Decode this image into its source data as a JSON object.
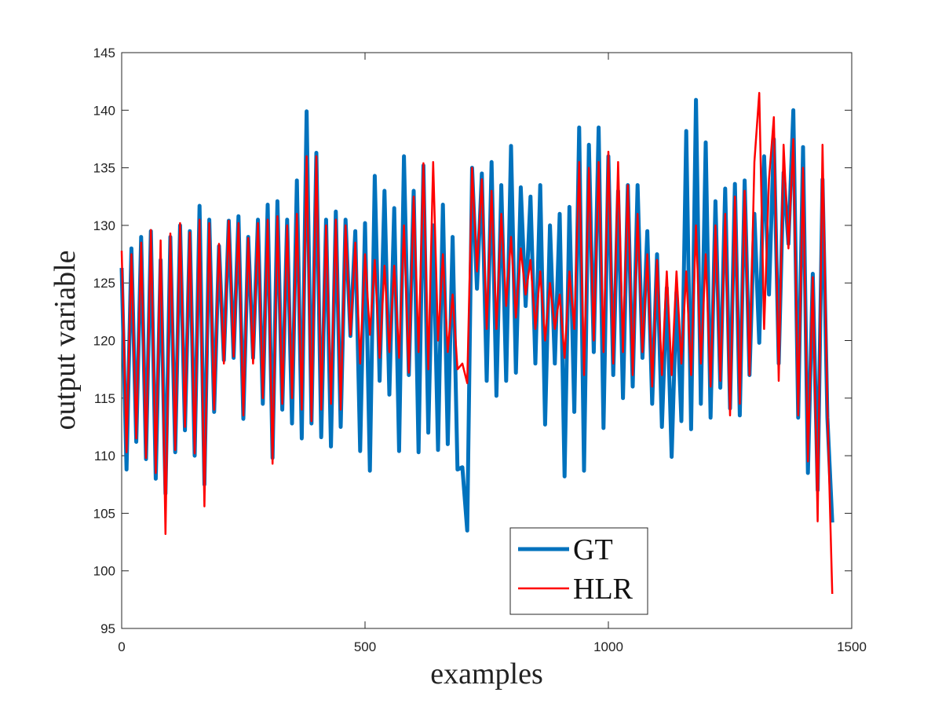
{
  "chart_data": {
    "type": "line",
    "xlabel": "examples",
    "ylabel": "output variable",
    "xlim": [
      0,
      1500
    ],
    "xticks": [
      0,
      500,
      1000,
      1500
    ],
    "ylim": [
      95,
      145
    ],
    "yticks": [
      95,
      100,
      105,
      110,
      115,
      120,
      125,
      130,
      135,
      140,
      145
    ],
    "legend": "lower center",
    "x": [
      0,
      10,
      20,
      30,
      40,
      50,
      60,
      70,
      80,
      90,
      100,
      110,
      120,
      130,
      140,
      150,
      160,
      170,
      180,
      190,
      200,
      210,
      220,
      230,
      240,
      250,
      260,
      270,
      280,
      290,
      300,
      310,
      320,
      330,
      340,
      350,
      360,
      370,
      380,
      390,
      400,
      410,
      420,
      430,
      440,
      450,
      460,
      470,
      480,
      490,
      500,
      510,
      520,
      530,
      540,
      550,
      560,
      570,
      580,
      590,
      600,
      610,
      620,
      630,
      640,
      650,
      660,
      670,
      680,
      690,
      700,
      710,
      720,
      730,
      740,
      750,
      760,
      770,
      780,
      790,
      800,
      810,
      820,
      830,
      840,
      850,
      860,
      870,
      880,
      890,
      900,
      910,
      920,
      930,
      940,
      950,
      960,
      970,
      980,
      990,
      1000,
      1010,
      1020,
      1030,
      1040,
      1050,
      1060,
      1070,
      1080,
      1090,
      1100,
      1110,
      1120,
      1130,
      1140,
      1150,
      1160,
      1170,
      1180,
      1190,
      1200,
      1210,
      1220,
      1230,
      1240,
      1250,
      1260,
      1270,
      1280,
      1290,
      1300,
      1310,
      1320,
      1330,
      1340,
      1350,
      1360,
      1370,
      1380,
      1390,
      1400,
      1410,
      1420,
      1430,
      1440,
      1450,
      1460
    ],
    "series": [
      {
        "name": "GT",
        "color": "#0072bd",
        "values": [
          126.3,
          108.8,
          128,
          111.2,
          129,
          109.7,
          129.5,
          108,
          127,
          106.7,
          129,
          110.3,
          130,
          112.2,
          129.5,
          110,
          131.7,
          107.5,
          130.5,
          113.8,
          128.2,
          118.3,
          130.4,
          118.5,
          130.8,
          113.2,
          129,
          118.5,
          130.5,
          114.5,
          131.8,
          109.8,
          132.1,
          114,
          130.5,
          112.8,
          133.9,
          111.5,
          139.9,
          112.8,
          136.3,
          111.6,
          130.5,
          110.8,
          131.2,
          112.5,
          130.5,
          120.4,
          129.5,
          110.4,
          130.2,
          108.7,
          134.3,
          116.5,
          133,
          115.3,
          131.5,
          110.4,
          136,
          117,
          133,
          110.3,
          135.2,
          112,
          130,
          110.5,
          131.8,
          111,
          129,
          108.8,
          109,
          103.5,
          135,
          124.5,
          134.5,
          116.5,
          135.5,
          115.2,
          133.5,
          116.5,
          136.9,
          117.2,
          133.3,
          123,
          132.5,
          118,
          133.5,
          112.7,
          130,
          118,
          131,
          108.2,
          131.6,
          113.8,
          138.5,
          108.7,
          137,
          119,
          138.5,
          112.4,
          136,
          117,
          133,
          115,
          133.5,
          116,
          133.5,
          118.5,
          129.5,
          114.5,
          127.5,
          112.5,
          124.6,
          109.9,
          124.2,
          113,
          138.2,
          112.3,
          140.9,
          114.5,
          137.2,
          113.3,
          132.1,
          115.9,
          133.2,
          114.1,
          133.6,
          113.5,
          133.9,
          117,
          131,
          119.8,
          136,
          124,
          137.5,
          118,
          134.6,
          128.4,
          140,
          113.3,
          136.8,
          108.5,
          125.8,
          107,
          134,
          113.3,
          104.2
        ]
      },
      {
        "name": "HLR",
        "color": "#ff0000",
        "values": [
          127.8,
          110.3,
          127.5,
          111.5,
          128.5,
          109.8,
          129.6,
          108.5,
          128.7,
          103.2,
          129.3,
          110.5,
          130.2,
          112.5,
          129.4,
          110.2,
          130.5,
          105.6,
          130.2,
          114,
          128.4,
          118,
          130.4,
          118.6,
          130.2,
          113.5,
          128.9,
          118,
          130.2,
          115,
          130.5,
          109.3,
          130.8,
          114.5,
          130,
          115,
          131,
          114,
          136,
          113,
          136,
          114,
          130,
          114.5,
          130.5,
          114,
          130,
          120.5,
          128.5,
          118,
          127.5,
          120.5,
          127,
          118.5,
          126.5,
          119,
          126.5,
          118.5,
          130,
          117.2,
          132.5,
          119,
          135.4,
          117.5,
          135.5,
          120,
          127.5,
          119,
          124,
          117.5,
          118,
          116.3,
          135,
          126,
          134,
          121,
          133,
          121,
          131,
          123,
          129,
          122,
          128,
          124,
          127,
          121,
          126,
          120,
          125,
          121,
          124,
          118.5,
          126,
          121,
          135.5,
          117,
          135,
          120,
          135.5,
          119,
          136.4,
          118,
          135.5,
          119,
          133.5,
          117,
          131,
          119,
          127.5,
          116,
          127,
          117,
          126,
          117,
          126,
          118,
          126,
          117,
          130,
          118,
          127.5,
          116,
          130,
          116.5,
          131,
          113.5,
          132.5,
          114.5,
          133,
          117,
          135.5,
          141.5,
          121,
          134,
          139.4,
          116.5,
          137,
          128,
          137.5,
          113.5,
          135,
          109.5,
          125.5,
          104.3,
          137,
          114,
          98
        ]
      }
    ]
  }
}
